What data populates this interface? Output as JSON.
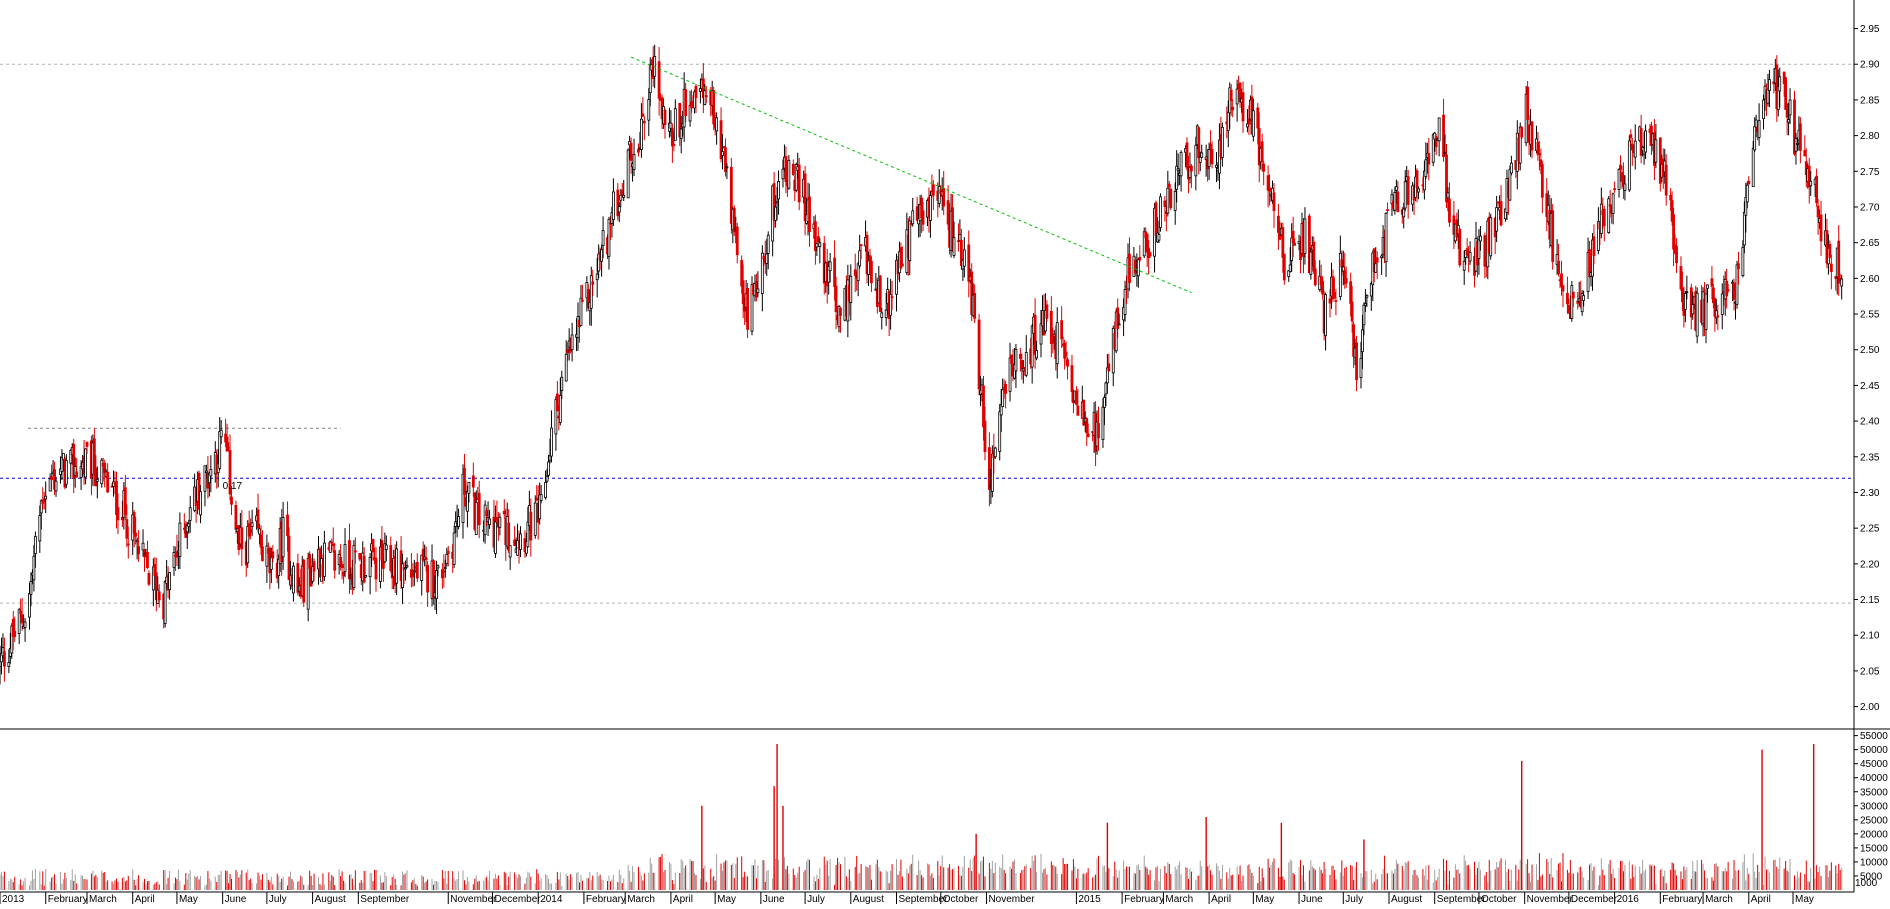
{
  "chart_data": [
    {
      "type": "candlestick",
      "panel": "price",
      "ylim": [
        1.97,
        2.99
      ],
      "y_ticks": [
        "2.00",
        "2.05",
        "2.10",
        "2.15",
        "2.20",
        "2.25",
        "2.30",
        "2.35",
        "2.40",
        "2.45",
        "2.50",
        "2.55",
        "2.60",
        "2.65",
        "2.70",
        "2.75",
        "2.80",
        "2.85",
        "2.90",
        "2.95"
      ],
      "up_color": "#000000",
      "down_color": "#e00000",
      "grid": false,
      "horizontal_lines": [
        {
          "value": 2.9,
          "color": "#b0b0b0",
          "style": "dashed"
        },
        {
          "value": 2.145,
          "color": "#b0b0b0",
          "style": "dashed"
        },
        {
          "value": 2.32,
          "color": "#0000e0",
          "style": "dashed"
        },
        {
          "value": 2.39,
          "color": "#808080",
          "style": "dashed",
          "segment": true
        }
      ],
      "trendline": {
        "from": [
          "2014-03",
          2.91
        ],
        "to": [
          "2015-03",
          2.58
        ],
        "color": "#00c000",
        "style": "dashed"
      },
      "annotation": "0.17",
      "anchors": [
        [
          "2013-01-01",
          2.06
        ],
        [
          "2013-01-20",
          2.14
        ],
        [
          "2013-01-30",
          2.3
        ],
        [
          "2013-02-10",
          2.33
        ],
        [
          "2013-03-05",
          2.34
        ],
        [
          "2013-03-25",
          2.28
        ],
        [
          "2013-04-08",
          2.2
        ],
        [
          "2013-04-22",
          2.15
        ],
        [
          "2013-05-10",
          2.28
        ],
        [
          "2013-05-25",
          2.34
        ],
        [
          "2013-06-02",
          2.38
        ],
        [
          "2013-06-12",
          2.22
        ],
        [
          "2013-06-25",
          2.24
        ],
        [
          "2013-07-05",
          2.18
        ],
        [
          "2013-07-12",
          2.24
        ],
        [
          "2013-07-22",
          2.16
        ],
        [
          "2013-08-05",
          2.21
        ],
        [
          "2013-08-25",
          2.2
        ],
        [
          "2013-09-20",
          2.2
        ],
        [
          "2013-10-25",
          2.18
        ],
        [
          "2013-11-05",
          2.24
        ],
        [
          "2013-11-12",
          2.31
        ],
        [
          "2013-11-22",
          2.26
        ],
        [
          "2013-12-20",
          2.24
        ],
        [
          "2014-01-03",
          2.27
        ],
        [
          "2014-01-10",
          2.38
        ],
        [
          "2014-01-20",
          2.48
        ],
        [
          "2014-02-05",
          2.58
        ],
        [
          "2014-02-25",
          2.72
        ],
        [
          "2014-03-10",
          2.8
        ],
        [
          "2014-03-20",
          2.9
        ],
        [
          "2014-04-01",
          2.8
        ],
        [
          "2014-04-15",
          2.86
        ],
        [
          "2014-05-01",
          2.84
        ],
        [
          "2014-05-15",
          2.65
        ],
        [
          "2014-05-22",
          2.55
        ],
        [
          "2014-06-01",
          2.62
        ],
        [
          "2014-06-15",
          2.76
        ],
        [
          "2014-06-25",
          2.74
        ],
        [
          "2014-07-10",
          2.65
        ],
        [
          "2014-07-25",
          2.55
        ],
        [
          "2014-08-10",
          2.64
        ],
        [
          "2014-08-25",
          2.55
        ],
        [
          "2014-09-10",
          2.66
        ],
        [
          "2014-09-25",
          2.72
        ],
        [
          "2014-10-05",
          2.68
        ],
        [
          "2014-10-20",
          2.62
        ],
        [
          "2014-10-28",
          2.45
        ],
        [
          "2014-11-03",
          2.32
        ],
        [
          "2014-11-12",
          2.45
        ],
        [
          "2014-11-25",
          2.48
        ],
        [
          "2014-12-10",
          2.55
        ],
        [
          "2014-12-25",
          2.48
        ],
        [
          "2015-01-05",
          2.4
        ],
        [
          "2015-01-15",
          2.38
        ],
        [
          "2015-01-25",
          2.5
        ],
        [
          "2015-02-05",
          2.6
        ],
        [
          "2015-02-20",
          2.66
        ],
        [
          "2015-03-05",
          2.72
        ],
        [
          "2015-03-25",
          2.79
        ],
        [
          "2015-04-05",
          2.76
        ],
        [
          "2015-04-15",
          2.85
        ],
        [
          "2015-05-01",
          2.82
        ],
        [
          "2015-05-12",
          2.72
        ],
        [
          "2015-05-22",
          2.62
        ],
        [
          "2015-06-05",
          2.66
        ],
        [
          "2015-06-18",
          2.55
        ],
        [
          "2015-07-01",
          2.62
        ],
        [
          "2015-07-10",
          2.48
        ],
        [
          "2015-07-22",
          2.62
        ],
        [
          "2015-08-05",
          2.7
        ],
        [
          "2015-08-25",
          2.76
        ],
        [
          "2015-09-05",
          2.82
        ],
        [
          "2015-09-12",
          2.66
        ],
        [
          "2015-09-25",
          2.62
        ],
        [
          "2015-10-10",
          2.66
        ],
        [
          "2015-10-25",
          2.75
        ],
        [
          "2015-11-01",
          2.84
        ],
        [
          "2015-11-10",
          2.76
        ],
        [
          "2015-11-25",
          2.6
        ],
        [
          "2015-12-05",
          2.55
        ],
        [
          "2015-12-20",
          2.66
        ],
        [
          "2016-01-05",
          2.75
        ],
        [
          "2016-01-20",
          2.8
        ],
        [
          "2016-02-05",
          2.74
        ],
        [
          "2016-02-12",
          2.6
        ],
        [
          "2016-02-22",
          2.55
        ],
        [
          "2016-03-10",
          2.57
        ],
        [
          "2016-03-25",
          2.6
        ],
        [
          "2016-04-05",
          2.8
        ],
        [
          "2016-04-15",
          2.88
        ],
        [
          "2016-04-25",
          2.85
        ],
        [
          "2016-05-05",
          2.78
        ],
        [
          "2016-05-15",
          2.72
        ],
        [
          "2016-05-25",
          2.62
        ],
        [
          "2016-06-05",
          2.62
        ]
      ],
      "x_labels": [
        {
          "date": "2013-01-01",
          "label": "2013"
        },
        {
          "date": "2013-02-01",
          "label": "February"
        },
        {
          "date": "2013-03-01",
          "label": "March"
        },
        {
          "date": "2013-04-01",
          "label": "April"
        },
        {
          "date": "2013-05-01",
          "label": "May"
        },
        {
          "date": "2013-06-01",
          "label": "June"
        },
        {
          "date": "2013-07-01",
          "label": "July"
        },
        {
          "date": "2013-08-01",
          "label": "August"
        },
        {
          "date": "2013-09-01",
          "label": "September"
        },
        {
          "date": "2013-11-01",
          "label": "November"
        },
        {
          "date": "2013-12-01",
          "label": "December"
        },
        {
          "date": "2014-01-01",
          "label": "2014"
        },
        {
          "date": "2014-02-01",
          "label": "February"
        },
        {
          "date": "2014-03-01",
          "label": "March"
        },
        {
          "date": "2014-04-01",
          "label": "April"
        },
        {
          "date": "2014-05-01",
          "label": "May"
        },
        {
          "date": "2014-06-01",
          "label": "June"
        },
        {
          "date": "2014-07-01",
          "label": "July"
        },
        {
          "date": "2014-08-01",
          "label": "August"
        },
        {
          "date": "2014-09-01",
          "label": "September"
        },
        {
          "date": "2014-10-01",
          "label": "October"
        },
        {
          "date": "2014-11-01",
          "label": "November"
        },
        {
          "date": "2015-01-01",
          "label": "2015"
        },
        {
          "date": "2015-02-01",
          "label": "February"
        },
        {
          "date": "2015-03-01",
          "label": "March"
        },
        {
          "date": "2015-04-01",
          "label": "April"
        },
        {
          "date": "2015-05-01",
          "label": "May"
        },
        {
          "date": "2015-06-01",
          "label": "June"
        },
        {
          "date": "2015-07-01",
          "label": "July"
        },
        {
          "date": "2015-08-01",
          "label": "August"
        },
        {
          "date": "2015-09-01",
          "label": "September"
        },
        {
          "date": "2015-10-01",
          "label": "October"
        },
        {
          "date": "2015-11-01",
          "label": "November"
        },
        {
          "date": "2015-12-01",
          "label": "December"
        },
        {
          "date": "2016-01-01",
          "label": "2016"
        },
        {
          "date": "2016-02-01",
          "label": "February"
        },
        {
          "date": "2016-03-01",
          "label": "March"
        },
        {
          "date": "2016-04-01",
          "label": "April"
        },
        {
          "date": "2016-05-01",
          "label": "May"
        }
      ],
      "x_range": [
        "2013-01-01",
        "2016-06-10"
      ]
    },
    {
      "type": "bar",
      "panel": "volume",
      "ylim": [
        0,
        57000
      ],
      "y_ticks": [
        "5000",
        "10000",
        "15000",
        "20000",
        "25000",
        "30000",
        "35000",
        "40000",
        "45000",
        "50000",
        "55000"
      ],
      "colors": {
        "up": "#a0a0a0",
        "down": "#e00000"
      },
      "spikes": [
        {
          "date": "2014-04-22",
          "value": 30000
        },
        {
          "date": "2014-06-10",
          "value": 37000
        },
        {
          "date": "2014-06-12",
          "value": 52000
        },
        {
          "date": "2014-06-16",
          "value": 30000
        },
        {
          "date": "2014-10-25",
          "value": 20000
        },
        {
          "date": "2015-01-22",
          "value": 24000
        },
        {
          "date": "2015-03-30",
          "value": 26000
        },
        {
          "date": "2015-05-20",
          "value": 24000
        },
        {
          "date": "2015-07-15",
          "value": 18000
        },
        {
          "date": "2015-10-30",
          "value": 46000
        },
        {
          "date": "2016-04-10",
          "value": 50000
        },
        {
          "date": "2016-05-15",
          "value": 52000
        }
      ],
      "extra_tick": "1000"
    }
  ]
}
